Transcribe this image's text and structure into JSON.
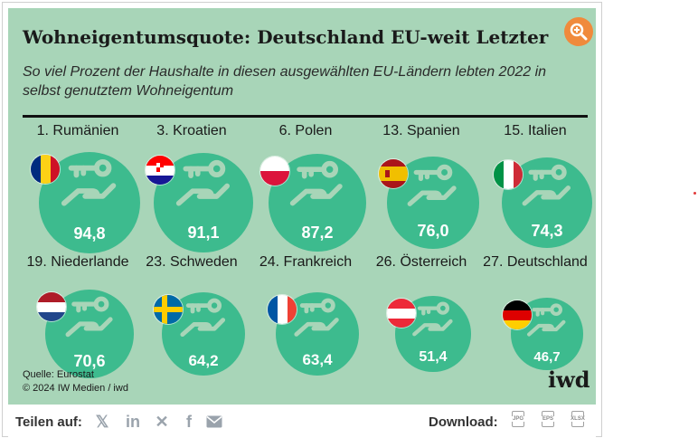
{
  "header": {
    "title": "Wohneigentumsquote: Deutschland EU-weit Letzter",
    "subtitle": "So viel Prozent der Haushalte in diesen ausgewählten EU-Ländern lebten 2022 in selbst genutztem Wohneigentum",
    "zoom_icon": "zoom-in-icon"
  },
  "chart_data": {
    "type": "bubble-grid",
    "title": "Wohneigentumsquote: Deutschland EU-weit Letzter",
    "subtitle": "So viel Prozent der Haushalte in diesen ausgewählten EU-Ländern lebten 2022 in selbst genutztem Wohneigentum",
    "items": [
      {
        "label": "1. Rumänien",
        "value": 94.8,
        "display": "94,8",
        "flag": "ro"
      },
      {
        "label": "3. Kroatien",
        "value": 91.1,
        "display": "91,1",
        "flag": "hr"
      },
      {
        "label": "6. Polen",
        "value": 87.2,
        "display": "87,2",
        "flag": "pl"
      },
      {
        "label": "13. Spanien",
        "value": 76.0,
        "display": "76,0",
        "flag": "es"
      },
      {
        "label": "15. Italien",
        "value": 74.3,
        "display": "74,3",
        "flag": "it"
      },
      {
        "label": "19. Niederlande",
        "value": 70.6,
        "display": "70,6",
        "flag": "nl"
      },
      {
        "label": "23. Schweden",
        "value": 64.2,
        "display": "64,2",
        "flag": "se"
      },
      {
        "label": "24. Frankreich",
        "value": 63.4,
        "display": "63,4",
        "flag": "fr"
      },
      {
        "label": "26. Österreich",
        "value": 51.4,
        "display": "51,4",
        "flag": "at"
      },
      {
        "label": "27. Deutschland",
        "value": 46.7,
        "display": "46,7",
        "flag": "de"
      }
    ]
  },
  "source": {
    "line1": "Quelle: Eurostat",
    "line2": "© 2024 IW Medien / iwd",
    "brand": "iwd"
  },
  "footer": {
    "share_label": "Teilen auf:",
    "share_icons": [
      "x-icon",
      "linkedin-icon",
      "xing-icon",
      "facebook-icon",
      "mail-icon"
    ],
    "download_label": "Download:",
    "downloads": [
      "JPG",
      "EPS",
      "XLSX"
    ]
  },
  "colors": {
    "background": "#a8d5b8",
    "circle": "#3dbb8e",
    "accent": "#f08a3c"
  }
}
